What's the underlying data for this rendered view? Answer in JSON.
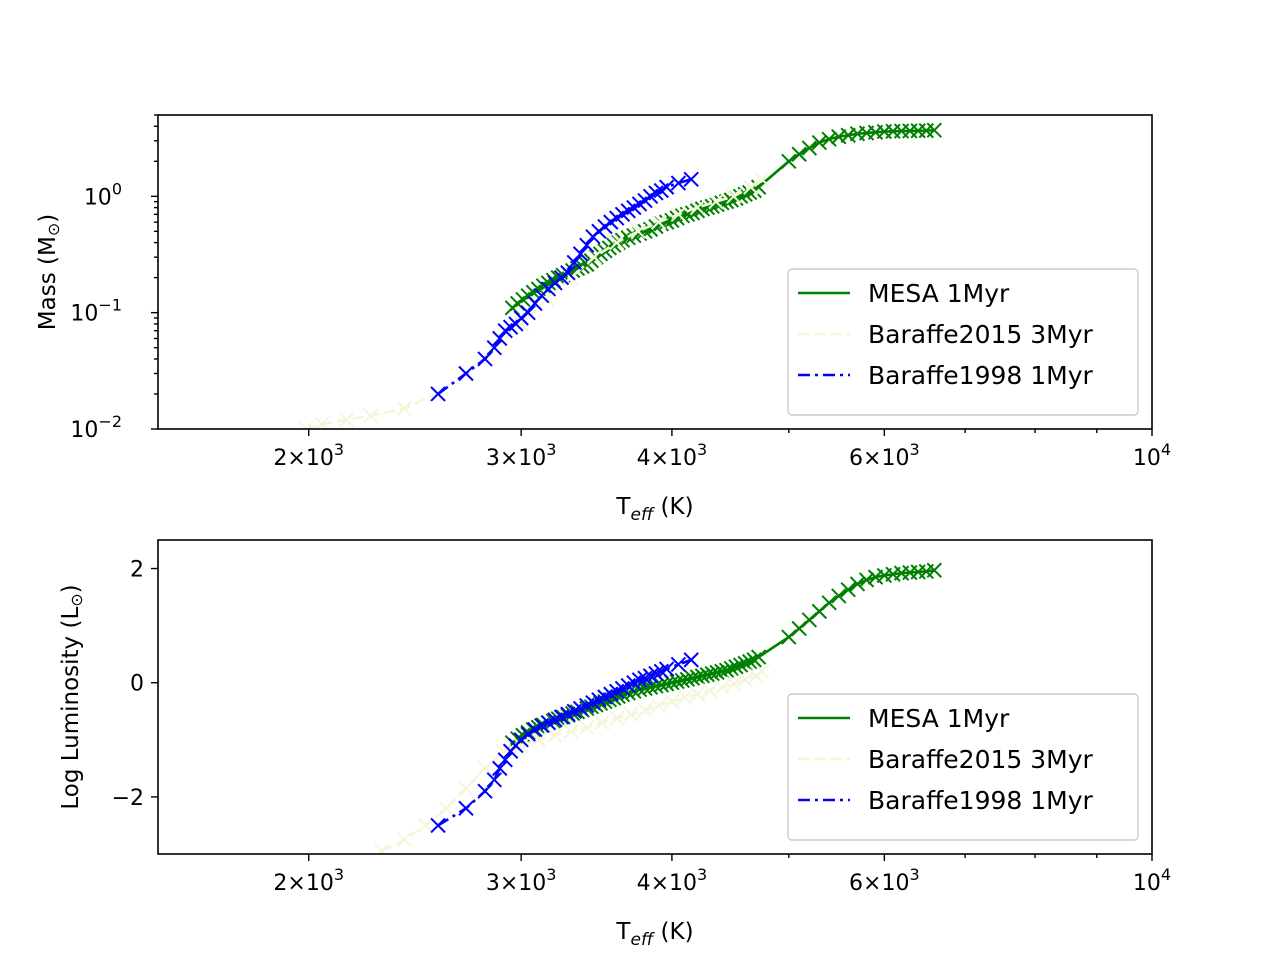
{
  "colors": {
    "MESA": "#008000",
    "Baraffe2015": "#f5f5dc",
    "Baraffe1998": "#0000ff",
    "axes": "#000000",
    "background": "#ffffff"
  },
  "chart_data": [
    {
      "type": "line",
      "markers": "x",
      "x_scale": "log",
      "y_scale": "log",
      "xlim": [
        1500,
        10000
      ],
      "ylim": [
        0.01,
        5
      ],
      "xlabel_text": "T",
      "xlabel_sub": "eff",
      "xlabel_unit": "(K)",
      "ylabel_text": "Mass (M",
      "ylabel_sub": "⊙",
      "ylabel_end": ")",
      "x_ticks": [
        {
          "value": 2000,
          "base": "2×10",
          "exp": "3"
        },
        {
          "value": 3000,
          "base": "3×10",
          "exp": "3"
        },
        {
          "value": 4000,
          "base": "4×10",
          "exp": "3"
        },
        {
          "value": 6000,
          "base": "6×10",
          "exp": "3"
        },
        {
          "value": 10000,
          "base": "10",
          "exp": "4"
        }
      ],
      "y_ticks": [
        {
          "value": 0.01,
          "base": "10",
          "exp": "−2"
        },
        {
          "value": 0.1,
          "base": "10",
          "exp": "−1"
        },
        {
          "value": 1,
          "base": "10",
          "exp": "0"
        }
      ],
      "legend_position": "lower-right",
      "legend": [
        "MESA 1Myr",
        "Baraffe2015 3Myr",
        "Baraffe1998 1Myr"
      ],
      "series": [
        {
          "name": "MESA 1Myr",
          "color": "#008000",
          "dash": "solid",
          "x": [
            2950,
            2980,
            3010,
            3040,
            3070,
            3100,
            3130,
            3160,
            3190,
            3220,
            3250,
            3280,
            3310,
            3340,
            3370,
            3400,
            3430,
            3460,
            3490,
            3520,
            3550,
            3580,
            3610,
            3640,
            3680,
            3720,
            3760,
            3800,
            3840,
            3880,
            3920,
            3960,
            4000,
            4040,
            4080,
            4120,
            4160,
            4200,
            4240,
            4280,
            4320,
            4360,
            4400,
            4440,
            4480,
            4520,
            4560,
            4600,
            4640,
            4680,
            4720,
            5000,
            5100,
            5200,
            5300,
            5400,
            5500,
            5600,
            5700,
            5800,
            5900,
            6000,
            6100,
            6200,
            6300,
            6400,
            6500,
            6600
          ],
          "y": [
            0.11,
            0.12,
            0.13,
            0.14,
            0.15,
            0.16,
            0.17,
            0.18,
            0.19,
            0.2,
            0.21,
            0.22,
            0.23,
            0.24,
            0.25,
            0.26,
            0.28,
            0.3,
            0.32,
            0.34,
            0.36,
            0.38,
            0.4,
            0.42,
            0.44,
            0.46,
            0.48,
            0.5,
            0.52,
            0.55,
            0.58,
            0.6,
            0.62,
            0.65,
            0.68,
            0.7,
            0.72,
            0.75,
            0.78,
            0.8,
            0.82,
            0.85,
            0.88,
            0.9,
            0.93,
            0.96,
            1.0,
            1.04,
            1.08,
            1.12,
            1.2,
            2.0,
            2.3,
            2.6,
            2.9,
            3.1,
            3.25,
            3.35,
            3.45,
            3.5,
            3.55,
            3.6,
            3.62,
            3.64,
            3.65,
            3.66,
            3.67,
            3.7
          ]
        },
        {
          "name": "Baraffe2015 3Myr",
          "color": "#f5f5dc",
          "dash": "dashed",
          "x": [
            1990,
            2050,
            2150,
            2250,
            2400,
            2550,
            2700,
            2850,
            3000,
            3150,
            3300,
            3450,
            3600,
            3750,
            3900,
            4050,
            4200,
            4350,
            4500,
            4650,
            4750
          ],
          "y": [
            0.01,
            0.011,
            0.012,
            0.013,
            0.015,
            0.02,
            0.03,
            0.05,
            0.08,
            0.13,
            0.2,
            0.3,
            0.4,
            0.5,
            0.6,
            0.7,
            0.8,
            0.9,
            1.0,
            1.2,
            1.4
          ]
        },
        {
          "name": "Baraffe1998 1Myr",
          "color": "#0000ff",
          "dash": "dashdot",
          "x": [
            2560,
            2700,
            2800,
            2850,
            2880,
            2910,
            2940,
            2970,
            3000,
            3040,
            3080,
            3120,
            3160,
            3200,
            3240,
            3280,
            3320,
            3360,
            3400,
            3440,
            3480,
            3520,
            3560,
            3600,
            3640,
            3680,
            3720,
            3760,
            3800,
            3840,
            3880,
            3920,
            3960,
            4050,
            4150
          ],
          "y": [
            0.02,
            0.03,
            0.04,
            0.05,
            0.06,
            0.07,
            0.075,
            0.08,
            0.09,
            0.1,
            0.12,
            0.14,
            0.16,
            0.18,
            0.2,
            0.22,
            0.27,
            0.32,
            0.38,
            0.45,
            0.5,
            0.55,
            0.6,
            0.65,
            0.7,
            0.75,
            0.8,
            0.86,
            0.92,
            1.0,
            1.07,
            1.12,
            1.2,
            1.3,
            1.4
          ]
        }
      ]
    },
    {
      "type": "line",
      "markers": "x",
      "x_scale": "log",
      "y_scale": "linear",
      "xlim": [
        1500,
        10000
      ],
      "ylim": [
        -3,
        2.5
      ],
      "xlabel_text": "T",
      "xlabel_sub": "eff",
      "xlabel_unit": "(K)",
      "ylabel_text": "Log Luminosity (L",
      "ylabel_sub": "⊙",
      "ylabel_end": ")",
      "x_ticks": [
        {
          "value": 2000,
          "base": "2×10",
          "exp": "3"
        },
        {
          "value": 3000,
          "base": "3×10",
          "exp": "3"
        },
        {
          "value": 4000,
          "base": "4×10",
          "exp": "3"
        },
        {
          "value": 6000,
          "base": "6×10",
          "exp": "3"
        },
        {
          "value": 10000,
          "base": "10",
          "exp": "4"
        }
      ],
      "y_ticks": [
        {
          "value": -2,
          "label": "−2"
        },
        {
          "value": 0,
          "label": "0"
        },
        {
          "value": 2,
          "label": "2"
        }
      ],
      "legend_position": "lower-right",
      "legend": [
        "MESA 1Myr",
        "Baraffe2015 3Myr",
        "Baraffe1998 1Myr"
      ],
      "series": [
        {
          "name": "MESA 1Myr",
          "color": "#008000",
          "dash": "solid",
          "x": [
            2950,
            2980,
            3010,
            3040,
            3070,
            3100,
            3130,
            3160,
            3190,
            3220,
            3250,
            3280,
            3310,
            3340,
            3370,
            3400,
            3430,
            3460,
            3490,
            3520,
            3550,
            3580,
            3610,
            3640,
            3680,
            3720,
            3760,
            3800,
            3840,
            3880,
            3920,
            3960,
            4000,
            4040,
            4080,
            4120,
            4160,
            4200,
            4240,
            4280,
            4320,
            4360,
            4400,
            4440,
            4480,
            4520,
            4560,
            4600,
            4640,
            4680,
            4720,
            5000,
            5100,
            5200,
            5300,
            5400,
            5500,
            5600,
            5700,
            5800,
            5900,
            6000,
            6100,
            6200,
            6300,
            6400,
            6500,
            6600
          ],
          "y": [
            -1.05,
            -0.98,
            -0.92,
            -0.87,
            -0.82,
            -0.78,
            -0.74,
            -0.7,
            -0.67,
            -0.63,
            -0.6,
            -0.57,
            -0.54,
            -0.51,
            -0.48,
            -0.45,
            -0.42,
            -0.39,
            -0.36,
            -0.33,
            -0.3,
            -0.27,
            -0.24,
            -0.21,
            -0.18,
            -0.15,
            -0.12,
            -0.1,
            -0.08,
            -0.06,
            -0.04,
            -0.02,
            0.0,
            0.02,
            0.04,
            0.06,
            0.08,
            0.1,
            0.12,
            0.14,
            0.16,
            0.18,
            0.2,
            0.22,
            0.25,
            0.28,
            0.31,
            0.34,
            0.37,
            0.4,
            0.45,
            0.8,
            0.95,
            1.1,
            1.25,
            1.4,
            1.52,
            1.63,
            1.73,
            1.8,
            1.85,
            1.88,
            1.9,
            1.92,
            1.93,
            1.94,
            1.95,
            1.97
          ]
        },
        {
          "name": "Baraffe2015 3Myr",
          "color": "#f5f5dc",
          "dash": "dashed",
          "x": [
            2300,
            2400,
            2500,
            2600,
            2700,
            2800,
            2900,
            3000,
            3100,
            3200,
            3300,
            3400,
            3500,
            3600,
            3700,
            3800,
            3900,
            4000,
            4100,
            4200,
            4300,
            4400,
            4500,
            4600,
            4700,
            4750
          ],
          "y": [
            -2.95,
            -2.75,
            -2.5,
            -2.2,
            -1.85,
            -1.5,
            -1.2,
            -1.1,
            -1.0,
            -0.92,
            -0.85,
            -0.78,
            -0.7,
            -0.62,
            -0.55,
            -0.48,
            -0.4,
            -0.33,
            -0.26,
            -0.2,
            -0.14,
            -0.08,
            -0.02,
            0.05,
            0.12,
            0.2
          ]
        },
        {
          "name": "Baraffe1998 1Myr",
          "color": "#0000ff",
          "dash": "dashdot",
          "x": [
            2560,
            2700,
            2800,
            2850,
            2880,
            2910,
            2940,
            2970,
            3000,
            3040,
            3080,
            3120,
            3160,
            3200,
            3240,
            3280,
            3320,
            3360,
            3400,
            3440,
            3480,
            3520,
            3560,
            3600,
            3640,
            3680,
            3720,
            3760,
            3800,
            3840,
            3880,
            3920,
            3960,
            4050,
            4150
          ],
          "y": [
            -2.5,
            -2.2,
            -1.9,
            -1.7,
            -1.5,
            -1.35,
            -1.2,
            -1.1,
            -1.0,
            -0.9,
            -0.82,
            -0.75,
            -0.7,
            -0.65,
            -0.6,
            -0.55,
            -0.5,
            -0.45,
            -0.4,
            -0.35,
            -0.3,
            -0.25,
            -0.2,
            -0.15,
            -0.1,
            -0.05,
            0.0,
            0.05,
            0.08,
            0.12,
            0.16,
            0.2,
            0.24,
            0.32,
            0.4
          ]
        }
      ]
    }
  ]
}
